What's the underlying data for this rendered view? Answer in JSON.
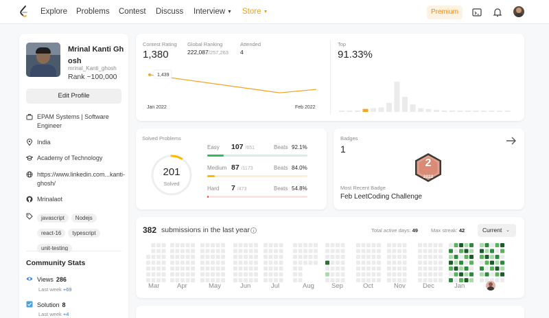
{
  "nav": {
    "items": [
      "Explore",
      "Problems",
      "Contest",
      "Discuss",
      "Interview",
      "Store"
    ],
    "premium": "Premium"
  },
  "profile": {
    "name": "Mrinal Kanti Gh osh",
    "username": "mrinal_Kanti_ghosh",
    "rank": "Rank ~100,000",
    "edit": "Edit Profile",
    "company": "EPAM Systems | Software Engineer",
    "location": "India",
    "school": "Academy of Technology",
    "website": "https://www.linkedin.com...kanti-ghosh/",
    "github": "Mrinalaot",
    "skills": [
      "javascript",
      "Nodejs",
      "react-16",
      "typescript",
      "unit-testing"
    ]
  },
  "community": {
    "title": "Community Stats",
    "views_label": "Views",
    "views": "286",
    "views_sub": "Last week",
    "views_delta": "+69",
    "solution_label": "Solution",
    "solution": "8",
    "solution_sub": "Last week",
    "solution_delta": "+4"
  },
  "contest": {
    "rating_label": "Contest Rating",
    "rating": "1,380",
    "global_label": "Global Ranking",
    "global": "222,087",
    "global_total": "/257,263",
    "attended_label": "Attended",
    "attended": "4",
    "point_label": "1,439",
    "x_start": "Jan 2022",
    "x_end": "Feb 2022",
    "top_label": "Top",
    "top": "91.33%"
  },
  "chart_data": [
    {
      "type": "line",
      "x": [
        "Jan 2022",
        "Feb 2022"
      ],
      "series": [
        {
          "values": [
            1439,
            1380
          ]
        }
      ]
    },
    {
      "type": "bar",
      "series": [
        {
          "values": [
            1,
            1,
            2,
            4,
            5,
            6,
            12,
            40,
            20,
            10,
            5,
            4,
            3,
            2,
            2,
            1,
            1,
            1,
            1,
            1,
            1,
            1
          ]
        }
      ],
      "highlight_index": 3,
      "colors": {
        "bar": "#ebebeb",
        "highlight": "#f5a623"
      }
    }
  ],
  "solved": {
    "title": "Solved Problems",
    "total": "201",
    "total_label": "Solved",
    "fraction": 0.087,
    "rows": [
      {
        "name": "Easy",
        "count": "107",
        "total": "/651",
        "beats_label": "Beats",
        "beats": "92.1%",
        "frac": 0.164,
        "color": "#2cbb5d",
        "track": "#d7efe0"
      },
      {
        "name": "Medium",
        "count": "87",
        "total": "/1173",
        "beats_label": "Beats",
        "beats": "84.0%",
        "frac": 0.074,
        "color": "#ffb800",
        "track": "#fdf0d2"
      },
      {
        "name": "Hard",
        "count": "7",
        "total": "/473",
        "beats_label": "Beats",
        "beats": "54.8%",
        "frac": 0.015,
        "color": "#ef4743",
        "track": "#fbe1e0"
      }
    ]
  },
  "badges": {
    "title": "Badges",
    "count": "1",
    "badge_num": "2",
    "badge_year": "2022",
    "recent_label": "Most Recent Badge",
    "recent": "Feb LeetCoding Challenge"
  },
  "submissions": {
    "count": "382",
    "label": "submissions in the last year",
    "active_label": "Total active days:",
    "active": "49",
    "streak_label": "Max streak:",
    "streak": "42",
    "select": "Current",
    "months": [
      "Mar",
      "Apr",
      "May",
      "Jun",
      "Jul",
      "Aug",
      "Sep",
      "Oct",
      "Nov",
      "Dec",
      "Jan"
    ]
  }
}
